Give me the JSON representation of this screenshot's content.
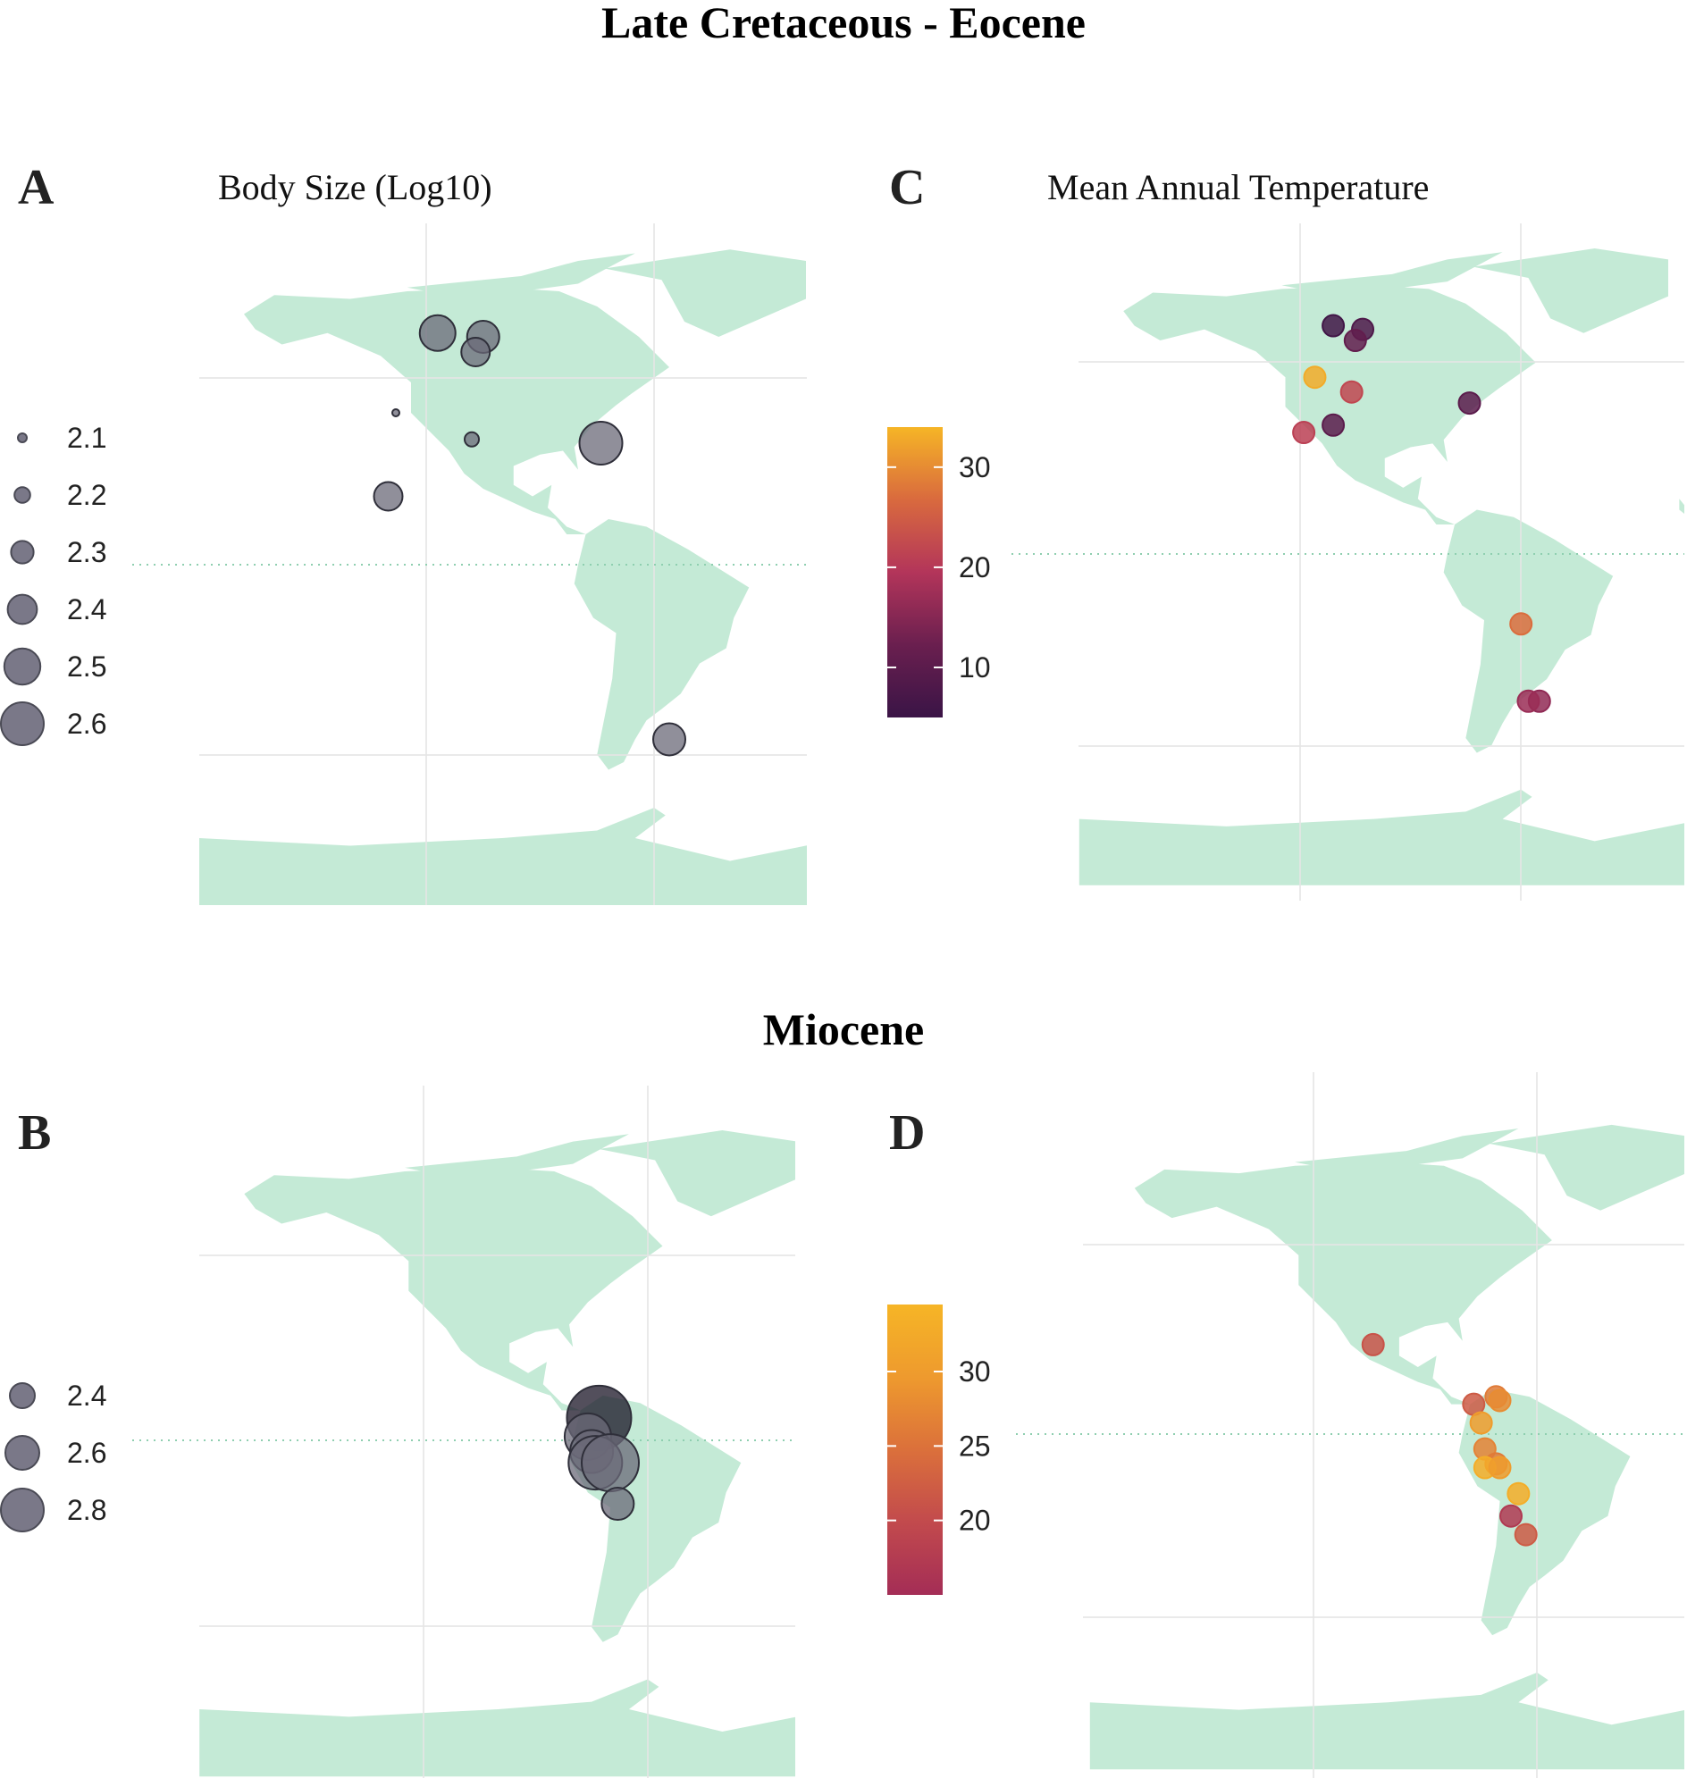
{
  "figure": {
    "period_titles": [
      "Late Cretaceous - Eocene",
      "Miocene"
    ],
    "panels": {
      "A": {
        "letter": "A",
        "title": "Body Size (Log10)"
      },
      "B": {
        "letter": "B",
        "title": ""
      },
      "C": {
        "letter": "C",
        "title": "Mean Annual Temperature"
      },
      "D": {
        "letter": "D",
        "title": ""
      }
    },
    "colors": {
      "land": "#c4ead6",
      "grid": "#e6e6e6",
      "equator": "#8fcfb0",
      "point_gray": "#6b6a78",
      "point_stroke": "#2f2f3a"
    }
  },
  "chart_data": [
    {
      "type": "scatter",
      "panel": "A",
      "title": "Body Size (Log10)",
      "period": "Late Cretaceous - Eocene",
      "encoding": "size",
      "legend": {
        "title": "",
        "entries": [
          "2.1",
          "2.2",
          "2.3",
          "2.4",
          "2.5",
          "2.6"
        ],
        "placement": "left"
      },
      "points": [
        {
          "lon": -117,
          "lat": 61,
          "value": 2.5
        },
        {
          "lon": -105,
          "lat": 60,
          "value": 2.45
        },
        {
          "lon": -107,
          "lat": 56,
          "value": 2.4
        },
        {
          "lon": -128,
          "lat": 40,
          "value": 2.1
        },
        {
          "lon": -108,
          "lat": 33,
          "value": 2.2
        },
        {
          "lon": -74,
          "lat": 32,
          "value": 2.6
        },
        {
          "lon": -130,
          "lat": 18,
          "value": 2.4
        },
        {
          "lon": -56,
          "lat": -46,
          "value": 2.45
        }
      ]
    },
    {
      "type": "scatter",
      "panel": "B",
      "period": "Miocene",
      "encoding": "size",
      "legend": {
        "title": "",
        "entries": [
          "2.4",
          "2.6",
          "2.8"
        ],
        "placement": "left"
      },
      "points": [
        {
          "lon": -73,
          "lat": 6,
          "value": 2.9
        },
        {
          "lon": -76,
          "lat": 1,
          "value": 2.65
        },
        {
          "lon": -75,
          "lat": -3,
          "value": 2.6
        },
        {
          "lon": -74,
          "lat": -6,
          "value": 2.75
        },
        {
          "lon": -70,
          "lat": -6,
          "value": 2.8
        },
        {
          "lon": -68,
          "lat": -17,
          "value": 2.45
        }
      ]
    },
    {
      "type": "scatter",
      "panel": "C",
      "title": "Mean Annual Temperature",
      "period": "Late Cretaceous - Eocene",
      "encoding": "color",
      "colorbar": {
        "ticks": [
          10,
          20,
          30
        ],
        "range": [
          5,
          34
        ],
        "colors": [
          "#3a1446",
          "#6a1f4f",
          "#b3355a",
          "#d96a3e",
          "#f6b526"
        ],
        "placement": "left"
      },
      "points": [
        {
          "lon": -111,
          "lat": 62,
          "value": 6
        },
        {
          "lon": -103,
          "lat": 61,
          "value": 8
        },
        {
          "lon": -105,
          "lat": 58,
          "value": 11
        },
        {
          "lon": -116,
          "lat": 48,
          "value": 33
        },
        {
          "lon": -106,
          "lat": 44,
          "value": 22
        },
        {
          "lon": -74,
          "lat": 41,
          "value": 10
        },
        {
          "lon": -111,
          "lat": 35,
          "value": 10
        },
        {
          "lon": -119,
          "lat": 33,
          "value": 21
        },
        {
          "lon": -60,
          "lat": -19,
          "value": 27
        },
        {
          "lon": -55,
          "lat": -40,
          "value": 16
        },
        {
          "lon": -58,
          "lat": -40,
          "value": 17
        }
      ]
    },
    {
      "type": "scatter",
      "panel": "D",
      "period": "Miocene",
      "encoding": "color",
      "colorbar": {
        "ticks": [
          20,
          25,
          30
        ],
        "range": [
          15,
          34.5
        ],
        "colors": [
          "#a42d56",
          "#c24a4d",
          "#db703b",
          "#ee9a2e",
          "#f6b526"
        ],
        "placement": "left"
      },
      "points": [
        {
          "lon": -104,
          "lat": 24,
          "value": 21
        },
        {
          "lon": -77,
          "lat": 8,
          "value": 22
        },
        {
          "lon": -71,
          "lat": 10,
          "value": 26
        },
        {
          "lon": -70,
          "lat": 9,
          "value": 28
        },
        {
          "lon": -75,
          "lat": 3,
          "value": 30
        },
        {
          "lon": -74,
          "lat": -4,
          "value": 27
        },
        {
          "lon": -71,
          "lat": -8,
          "value": 26
        },
        {
          "lon": -74,
          "lat": -9,
          "value": 33
        },
        {
          "lon": -70,
          "lat": -9,
          "value": 30
        },
        {
          "lon": -65,
          "lat": -16,
          "value": 33
        },
        {
          "lon": -67,
          "lat": -22,
          "value": 17
        },
        {
          "lon": -63,
          "lat": -27,
          "value": 22
        }
      ]
    }
  ]
}
